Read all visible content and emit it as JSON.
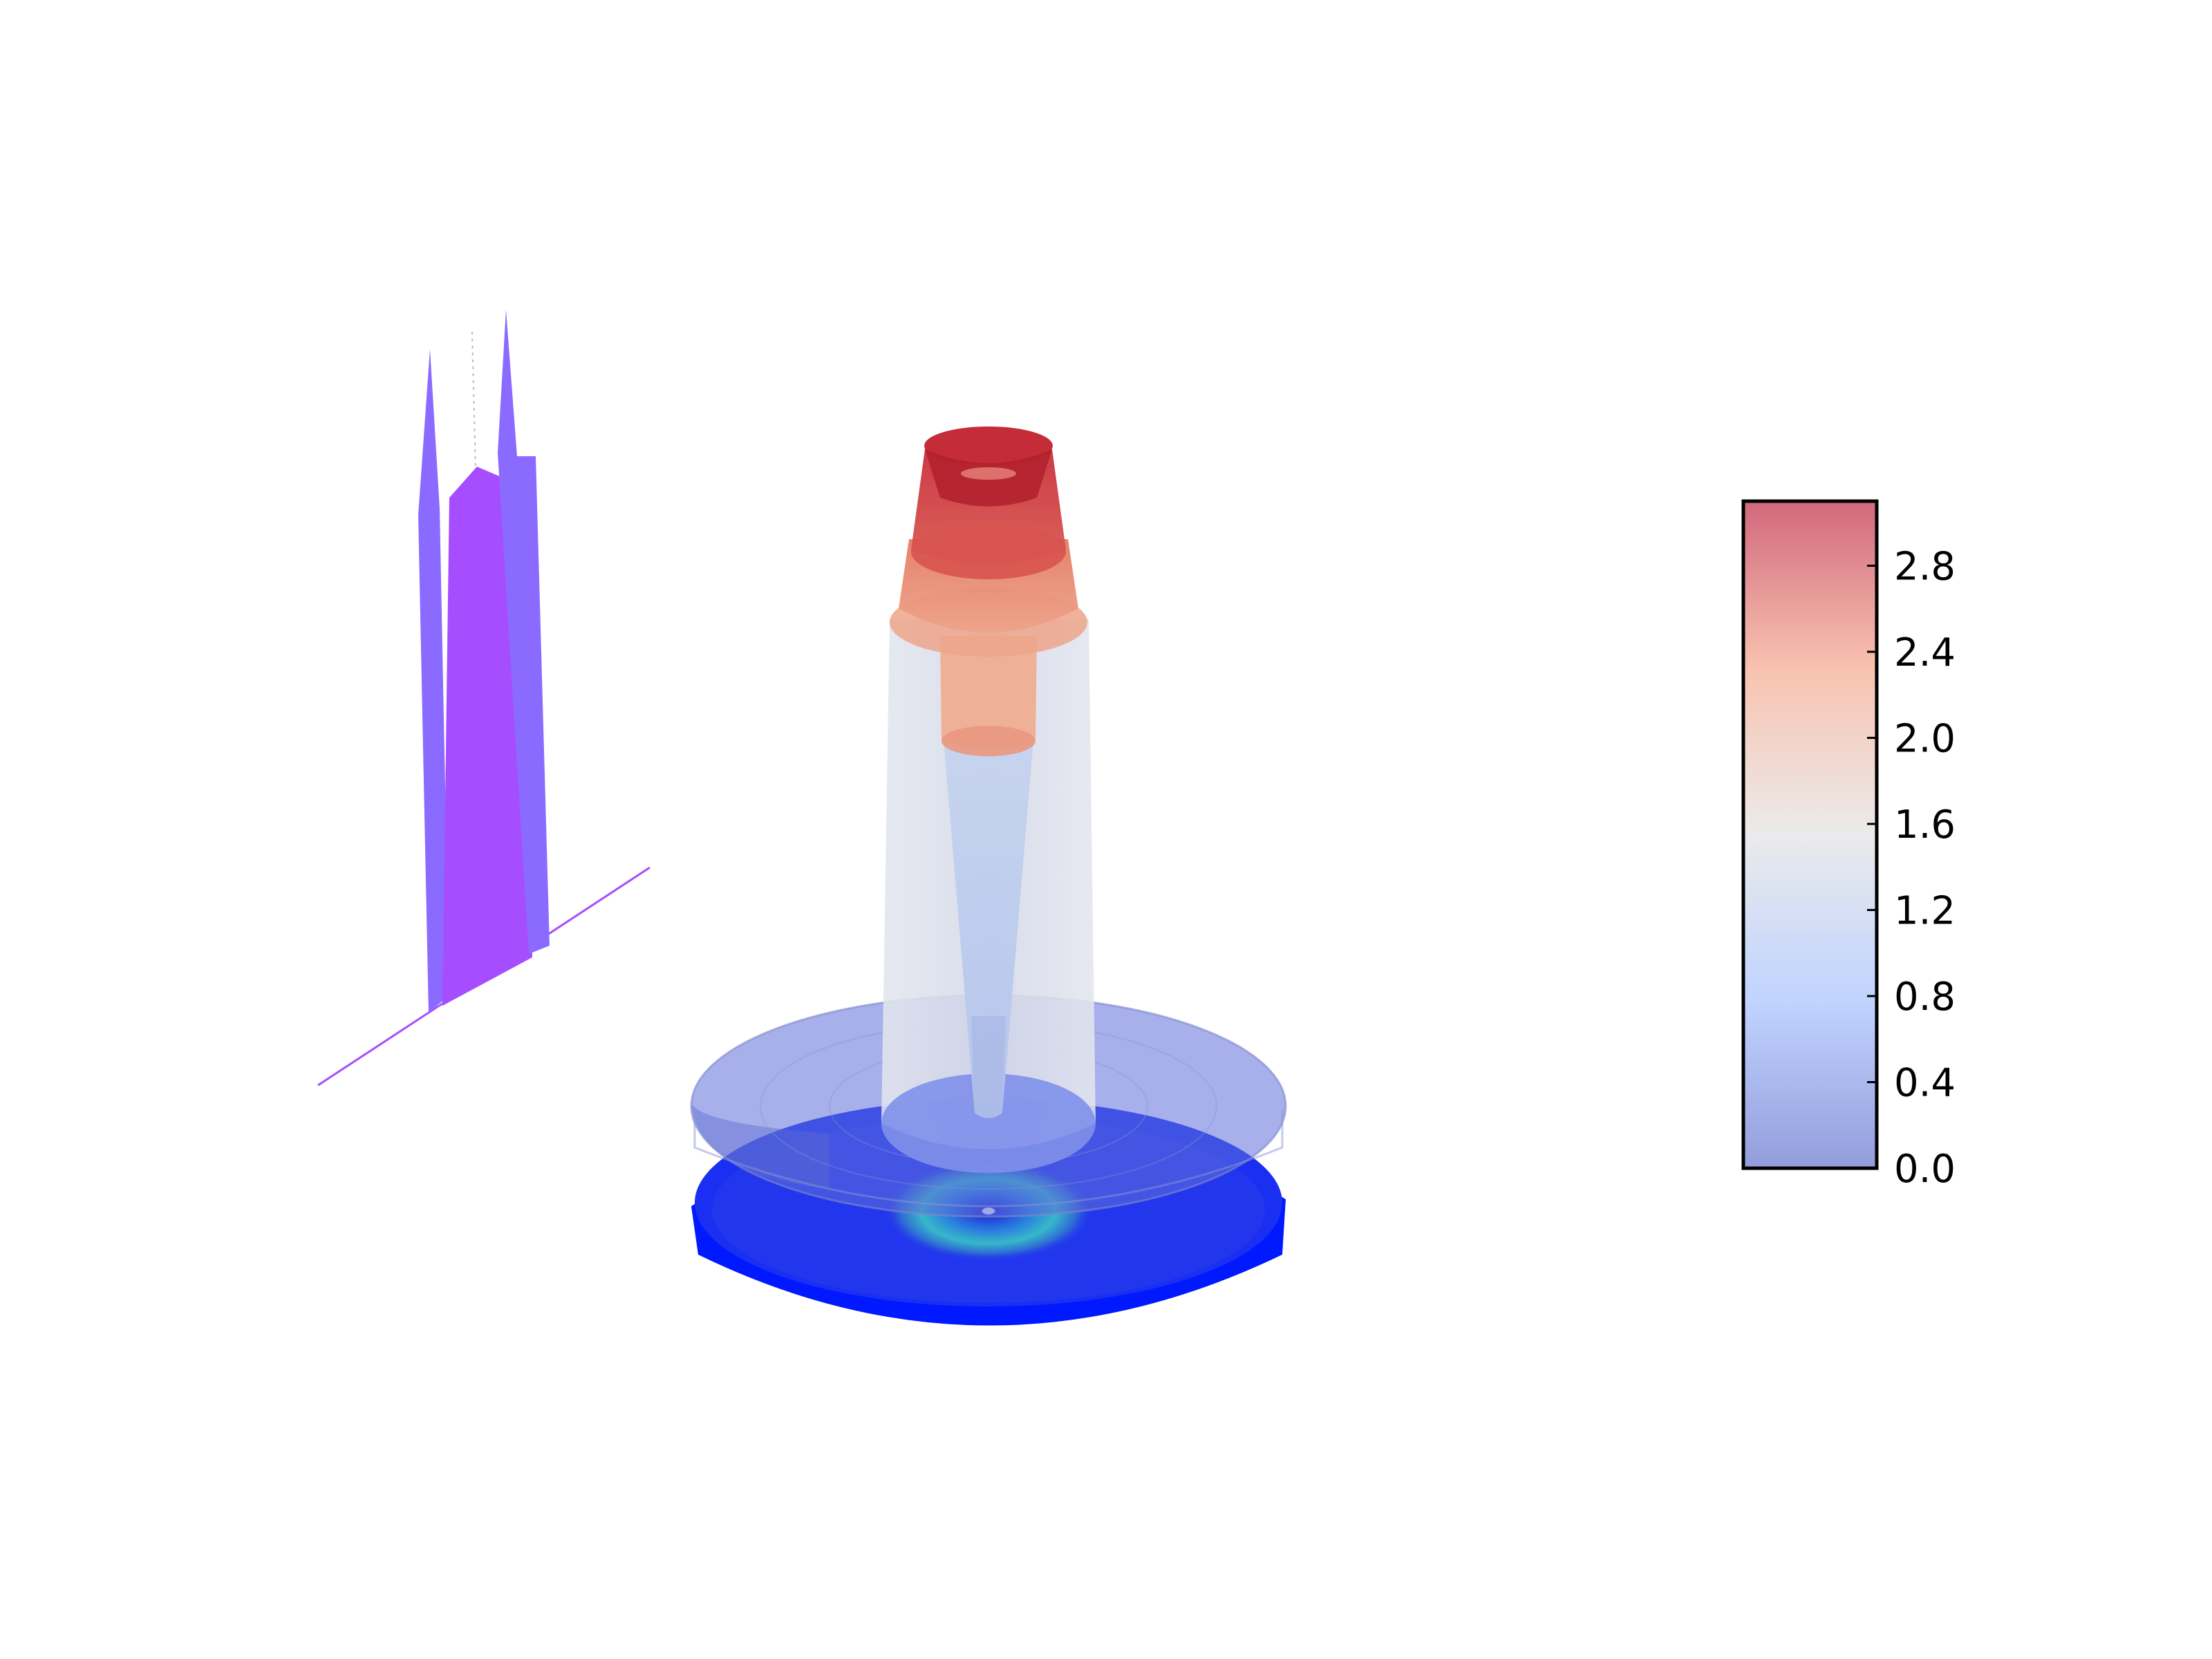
{
  "chart_data": {
    "type": "surface3d",
    "title": "",
    "colormap": "coolwarm",
    "colorbar": {
      "ticks": [
        "0.0",
        "0.4",
        "0.8",
        "1.2",
        "1.6",
        "2.0",
        "2.4",
        "2.8"
      ],
      "tick_values": [
        0.0,
        0.4,
        0.8,
        1.2,
        1.6,
        2.0,
        2.4,
        2.8
      ],
      "range": [
        0.0,
        3.1
      ],
      "placement": "right"
    },
    "surfaces": [
      {
        "name": "",
        "shape": "outer disk ring",
        "level": 0.0,
        "color": "#0019ff"
      },
      {
        "name": "",
        "shape": "translucent disk ring",
        "level": 0.4,
        "color": "#6f7fe0"
      },
      {
        "name": "",
        "shape": "wide cylinder",
        "level_range": [
          0.4,
          2.1
        ],
        "color": "#dfe3ee"
      },
      {
        "name": "",
        "shape": "inner tapered cylinder",
        "level_range": [
          0.4,
          2.4
        ],
        "color": "#c9d7f0"
      },
      {
        "name": "",
        "shape": "top cap",
        "level_range": [
          2.4,
          3.1
        ],
        "color": "#cd3a43"
      }
    ],
    "projection_profile": {
      "shape": "double-peaked profile",
      "color": "#a64dff",
      "peaks": 2
    }
  }
}
